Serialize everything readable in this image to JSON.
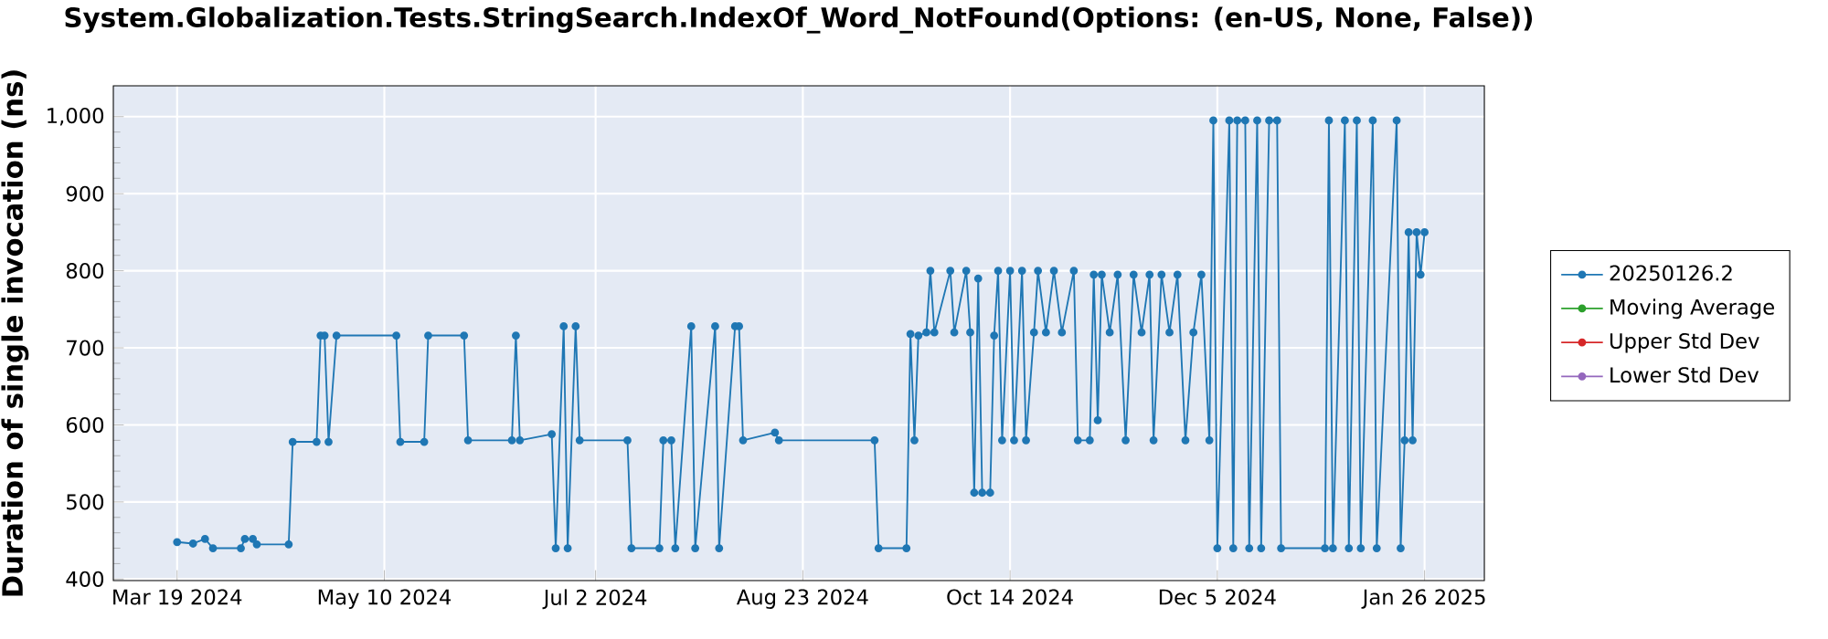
{
  "chart_data": {
    "type": "line",
    "title": "System.Globalization.Tests.StringSearch.IndexOf_Word_NotFound(Options: (en-US, None, False))",
    "ylabel": "Duration of single invocation (ns)",
    "xlim": [
      "2024-03-03",
      "2025-02-10"
    ],
    "xticks": [
      {
        "value": "2024-03-19",
        "label": "Mar 19 2024"
      },
      {
        "value": "2024-05-10",
        "label": "May 10 2024"
      },
      {
        "value": "2024-07-02",
        "label": "Jul 2 2024"
      },
      {
        "value": "2024-08-23",
        "label": "Aug 23 2024"
      },
      {
        "value": "2024-10-14",
        "label": "Oct 14 2024"
      },
      {
        "value": "2024-12-05",
        "label": "Dec 5 2024"
      },
      {
        "value": "2025-01-26",
        "label": "Jan 26 2025"
      }
    ],
    "ylim": [
      398,
      1040
    ],
    "yticks": [
      400,
      500,
      600,
      700,
      800,
      900,
      {
        "value": 1000,
        "label": "1,000"
      }
    ],
    "grid": true,
    "legend": "right",
    "marker": "circle",
    "line_style": "solid",
    "series": [
      {
        "name": "20250126.2",
        "color": "#1f77b4",
        "x": [
          "2024-03-19",
          "2024-03-23",
          "2024-03-26",
          "2024-03-28",
          "2024-04-04",
          "2024-04-05",
          "2024-04-07",
          "2024-04-08",
          "2024-04-16",
          "2024-04-17",
          "2024-04-23",
          "2024-04-24",
          "2024-04-25",
          "2024-04-26",
          "2024-04-28",
          "2024-05-13",
          "2024-05-14",
          "2024-05-20",
          "2024-05-21",
          "2024-05-30",
          "2024-05-31",
          "2024-06-11",
          "2024-06-12",
          "2024-06-13",
          "2024-06-21",
          "2024-06-22",
          "2024-06-24",
          "2024-06-25",
          "2024-06-27",
          "2024-06-28",
          "2024-07-10",
          "2024-07-11",
          "2024-07-18",
          "2024-07-19",
          "2024-07-21",
          "2024-07-22",
          "2024-07-26",
          "2024-07-27",
          "2024-08-01",
          "2024-08-02",
          "2024-08-06",
          "2024-08-07",
          "2024-08-08",
          "2024-08-16",
          "2024-08-17",
          "2024-09-10",
          "2024-09-11",
          "2024-09-18",
          "2024-09-19",
          "2024-09-20",
          "2024-09-21",
          "2024-09-23",
          "2024-09-24",
          "2024-09-25",
          "2024-09-29",
          "2024-09-30",
          "2024-10-03",
          "2024-10-04",
          "2024-10-05",
          "2024-10-06",
          "2024-10-07",
          "2024-10-09",
          "2024-10-10",
          "2024-10-11",
          "2024-10-12",
          "2024-10-14",
          "2024-10-15",
          "2024-10-17",
          "2024-10-18",
          "2024-10-20",
          "2024-10-21",
          "2024-10-23",
          "2024-10-25",
          "2024-10-27",
          "2024-10-30",
          "2024-10-31",
          "2024-11-03",
          "2024-11-04",
          "2024-11-05",
          "2024-11-06",
          "2024-11-08",
          "2024-11-10",
          "2024-11-12",
          "2024-11-14",
          "2024-11-16",
          "2024-11-18",
          "2024-11-19",
          "2024-11-21",
          "2024-11-23",
          "2024-11-25",
          "2024-11-27",
          "2024-11-29",
          "2024-12-01",
          "2024-12-03",
          "2024-12-04",
          "2024-12-05",
          "2024-12-08",
          "2024-12-09",
          "2024-12-10",
          "2024-12-12",
          "2024-12-13",
          "2024-12-15",
          "2024-12-16",
          "2024-12-18",
          "2024-12-20",
          "2024-12-21",
          "2025-01-01",
          "2025-01-02",
          "2025-01-03",
          "2025-01-06",
          "2025-01-07",
          "2025-01-09",
          "2025-01-10",
          "2025-01-13",
          "2025-01-14",
          "2025-01-19",
          "2025-01-20",
          "2025-01-21",
          "2025-01-22",
          "2025-01-23",
          "2025-01-24",
          "2025-01-25",
          "2025-01-26"
        ],
        "values": [
          448,
          446,
          452,
          440,
          440,
          452,
          452,
          445,
          445,
          578,
          578,
          716,
          716,
          578,
          716,
          716,
          578,
          578,
          716,
          716,
          580,
          580,
          716,
          580,
          588,
          440,
          728,
          440,
          728,
          580,
          580,
          440,
          440,
          580,
          580,
          440,
          728,
          440,
          728,
          440,
          728,
          728,
          580,
          590,
          580,
          580,
          440,
          440,
          718,
          580,
          716,
          720,
          800,
          720,
          800,
          720,
          800,
          720,
          512,
          790,
          512,
          512,
          716,
          800,
          580,
          800,
          580,
          800,
          580,
          720,
          800,
          720,
          800,
          720,
          800,
          580,
          580,
          795,
          606,
          795,
          720,
          795,
          580,
          795,
          720,
          795,
          580,
          795,
          720,
          795,
          580,
          720,
          795,
          580,
          995,
          440,
          995,
          440,
          995,
          995,
          440,
          995,
          440,
          995,
          995,
          440,
          440,
          995,
          440,
          995,
          440,
          995,
          440,
          995,
          440,
          995,
          440,
          580,
          850,
          580,
          850,
          795,
          850
        ]
      },
      {
        "name": "Moving Average",
        "color": "#2ca02c"
      },
      {
        "name": "Upper Std Dev",
        "color": "#d62728"
      },
      {
        "name": "Lower Std Dev",
        "color": "#9467bd"
      }
    ]
  }
}
